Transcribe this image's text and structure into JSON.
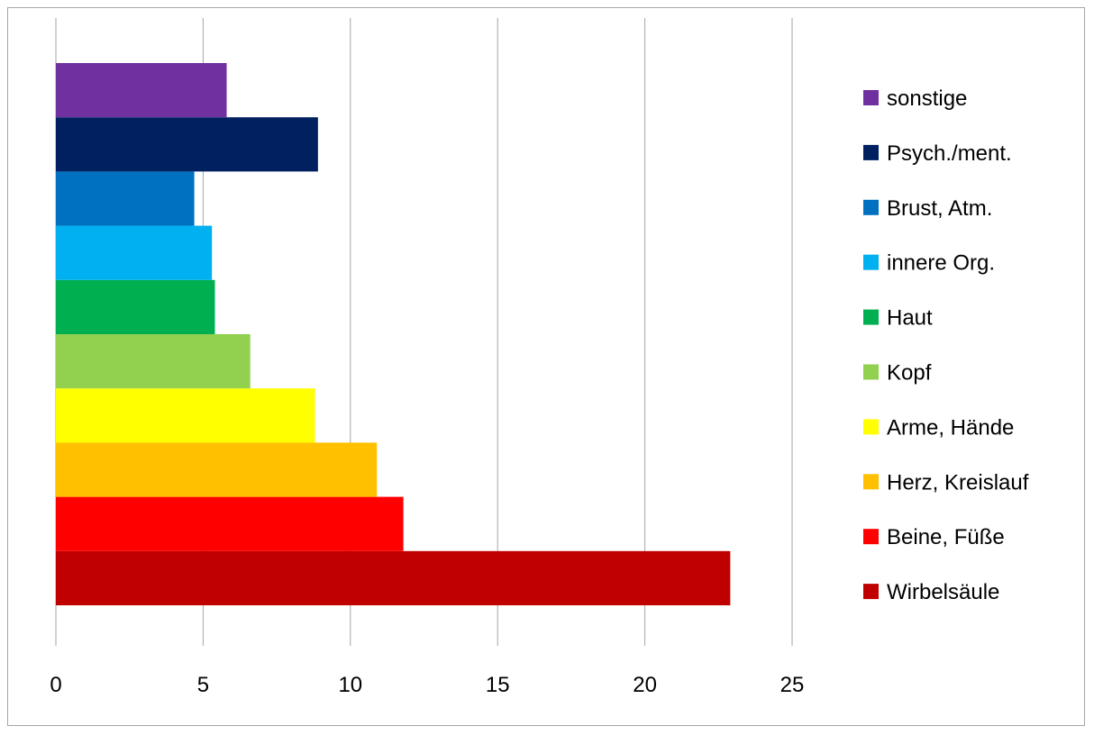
{
  "chart_data": {
    "type": "bar",
    "orientation": "horizontal",
    "title": "",
    "xlabel": "",
    "ylabel": "",
    "xlim": [
      0,
      25
    ],
    "x_ticks": [
      0,
      5,
      10,
      15,
      20,
      25
    ],
    "grid": "vertical",
    "legend_position": "right",
    "series": [
      {
        "name": "Wirbelsäule",
        "value": 22.9,
        "color": "#C00000"
      },
      {
        "name": "Beine, Füße",
        "value": 11.8,
        "color": "#FF0000"
      },
      {
        "name": "Herz, Kreislauf",
        "value": 10.9,
        "color": "#FFC000"
      },
      {
        "name": "Arme, Hände",
        "value": 8.8,
        "color": "#FFFF00"
      },
      {
        "name": "Kopf",
        "value": 6.6,
        "color": "#92D050"
      },
      {
        "name": "Haut",
        "value": 5.4,
        "color": "#00B050"
      },
      {
        "name": "innere Org.",
        "value": 5.3,
        "color": "#00B0F0"
      },
      {
        "name": "Brust, Atm.",
        "value": 4.7,
        "color": "#0070C0"
      },
      {
        "name": "Psych./ment.",
        "value": 8.9,
        "color": "#002060"
      },
      {
        "name": "sonstige",
        "value": 5.8,
        "color": "#7030A0"
      }
    ]
  }
}
